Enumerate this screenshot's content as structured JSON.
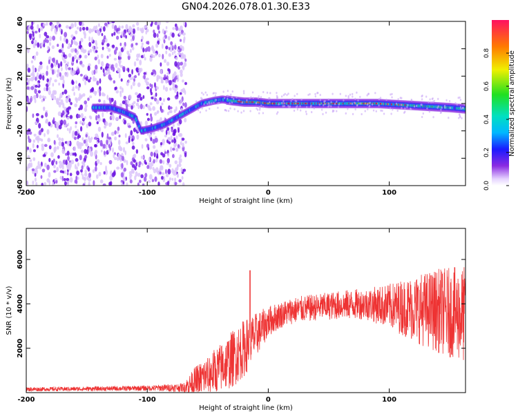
{
  "title": "GN04.2026.078.01.30.E33",
  "chart_data": [
    {
      "type": "heatmap",
      "name": "spectrogram",
      "xlabel": "Height of straight line (km)",
      "ylabel": "Frequency (Hz)",
      "xlim": [
        -200,
        163
      ],
      "ylim": [
        -60,
        60
      ],
      "xticks": [
        -200,
        -100,
        0,
        100
      ],
      "yticks": [
        -60,
        -40,
        -20,
        0,
        20,
        40,
        60
      ],
      "colorbar": {
        "label": "Normalized spectral amplitude",
        "range": [
          0,
          1
        ],
        "ticks": [
          "0.0",
          "0.2",
          "0.4",
          "0.6",
          "0.8"
        ]
      },
      "ridge": {
        "x": [
          -145,
          -130,
          -120,
          -110,
          -105,
          -95,
          -85,
          -75,
          -65,
          -55,
          -45,
          -38,
          -30,
          -20,
          -10,
          0,
          30,
          60,
          90,
          110,
          130,
          150,
          163
        ],
        "y": [
          -3,
          -3,
          -6,
          -10,
          -20,
          -18,
          -15,
          -10,
          -5,
          0,
          2,
          3,
          2,
          1,
          1,
          0,
          0,
          0,
          0,
          -1,
          -2,
          -3,
          -4
        ]
      },
      "noise_region_x": [
        -200,
        -68
      ],
      "colors": {
        "low": "#d6b8f8",
        "mid": "#7a1ee6",
        "high": "#e81010"
      }
    },
    {
      "type": "line",
      "name": "snr",
      "xlabel": "Height of straight line (km)",
      "ylabel": "SNR (10 * v/v)",
      "xlim": [
        -200,
        163
      ],
      "ylim": [
        0,
        7400
      ],
      "xticks": [
        -200,
        -100,
        0,
        100
      ],
      "yticks": [
        2000,
        4000,
        6000
      ],
      "envelope": {
        "x": [
          -200,
          -150,
          -100,
          -70,
          -60,
          -50,
          -40,
          -30,
          -20,
          -10,
          0,
          10,
          20,
          40,
          60,
          80,
          100,
          120,
          140,
          163
        ],
        "mean": [
          150,
          170,
          200,
          230,
          500,
          800,
          1100,
          1500,
          2000,
          2600,
          3200,
          3500,
          3700,
          3850,
          3950,
          4000,
          3900,
          3800,
          3700,
          3500
        ],
        "amp": [
          90,
          100,
          120,
          200,
          700,
          900,
          1100,
          1300,
          1300,
          1000,
          700,
          600,
          600,
          600,
          650,
          700,
          1000,
          1500,
          1900,
          2200
        ]
      },
      "spike": {
        "x": -15,
        "y": 5500
      },
      "color": "#ee3333"
    }
  ]
}
